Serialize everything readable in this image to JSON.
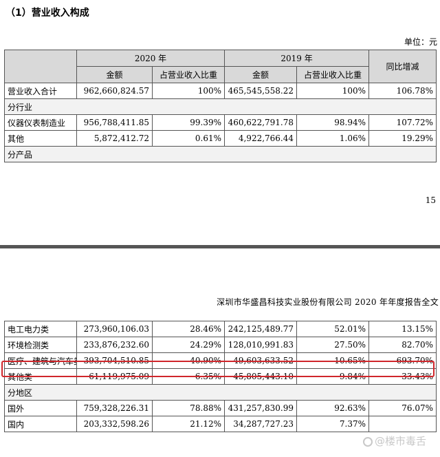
{
  "section_title": "（1）营业收入构成",
  "unit": "单位：元",
  "top_table": {
    "year_2020": "2020 年",
    "year_2019": "2019 年",
    "col_amount": "金额",
    "col_ratio": "占营业收入比重",
    "col_yoy": "同比增减",
    "rows": [
      {
        "label": "营业收入合计",
        "a2020": "962,660,824.57",
        "r2020": "100%",
        "a2019": "465,545,558.22",
        "r2019": "100%",
        "yoy": "106.78%"
      },
      {
        "label": "分行业"
      },
      {
        "label": "仪器仪表制造业",
        "a2020": "956,788,411.85",
        "r2020": "99.39%",
        "a2019": "460,622,791.78",
        "r2019": "98.94%",
        "yoy": "107.72%"
      },
      {
        "label": "其他",
        "a2020": "5,872,412.72",
        "r2020": "0.61%",
        "a2019": "4,922,766.44",
        "r2019": "1.06%",
        "yoy": "19.29%"
      },
      {
        "label": "分产品"
      }
    ]
  },
  "page_number": "15",
  "running_head": "深圳市华盛昌科技实业股份有限公司 2020 年年度报告全文",
  "bottom_table": {
    "rows": [
      {
        "label": "电工电力类",
        "a2020": "273,960,106.03",
        "r2020": "28.46%",
        "a2019": "242,125,489.77",
        "r2019": "52.01%",
        "yoy": "13.15%"
      },
      {
        "label": "环境检测类",
        "a2020": "233,876,232.60",
        "r2020": "24.29%",
        "a2019": "128,010,991.83",
        "r2019": "27.50%",
        "yoy": "82.70%"
      },
      {
        "label": "医疗、建筑与汽车类",
        "a2020": "393,704,510.85",
        "r2020": "40.90%",
        "a2019": "49,603,633.52",
        "r2019": "10.65%",
        "yoy": "693.70%"
      },
      {
        "label": "其他类",
        "a2020": "61,119,975.09",
        "r2020": "6.35%",
        "a2019": "45,805,443.10",
        "r2019": "9.84%",
        "yoy": "33.43%"
      },
      {
        "label": "分地区"
      },
      {
        "label": "国外",
        "a2020": "759,328,226.31",
        "r2020": "78.88%",
        "a2019": "431,257,830.99",
        "r2019": "92.63%",
        "yoy": "76.07%"
      },
      {
        "label": "国内",
        "a2020": "203,332,598.26",
        "r2020": "21.12%",
        "a2019": "34,287,727.23",
        "r2019": "7.37%",
        "yoy": ""
      }
    ]
  },
  "watermark": "@楼市毒舌",
  "highlight_color": "#d0262b"
}
